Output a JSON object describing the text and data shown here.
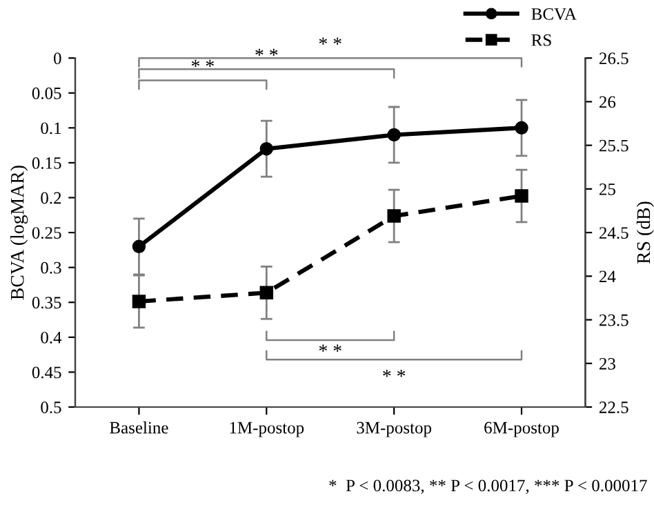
{
  "chart_data": {
    "type": "line",
    "categories": [
      "Baseline",
      "1M-postop",
      "3M-postop",
      "6M-postop"
    ],
    "ylabel": "BCVA (logMAR)",
    "y2label": "RS (dB)",
    "ylim": [
      0.5,
      0
    ],
    "yticks": [
      0,
      0.05,
      0.1,
      0.15,
      0.2,
      0.25,
      0.3,
      0.35,
      0.4,
      0.45,
      0.5
    ],
    "y2lim": [
      22.5,
      26.5
    ],
    "y2ticks": [
      22.5,
      23,
      23.5,
      24,
      24.5,
      25,
      25.5,
      26,
      26.5
    ],
    "series": [
      {
        "name": "BCVA",
        "color": "#000000",
        "values": [
          0.27,
          0.13,
          0.11,
          0.1
        ],
        "errors": [
          0.04,
          0.04,
          0.04,
          0.04
        ],
        "marker": "circle",
        "line_style": "solid"
      },
      {
        "name": "RS",
        "color": "#000000",
        "values": [
          23.71,
          23.81,
          24.69,
          24.92
        ],
        "errors": [
          0.3,
          0.3,
          0.3,
          0.3
        ],
        "marker": "square",
        "line_style": "dashed",
        "axis": "y2"
      }
    ],
    "annotations": [
      "* *",
      "* *",
      "* *",
      "* *",
      "* *",
      "*  P < 0.0083, ** P < 0.0017, *** P < 0.00017"
    ],
    "legend": "top right",
    "grid": false
  }
}
